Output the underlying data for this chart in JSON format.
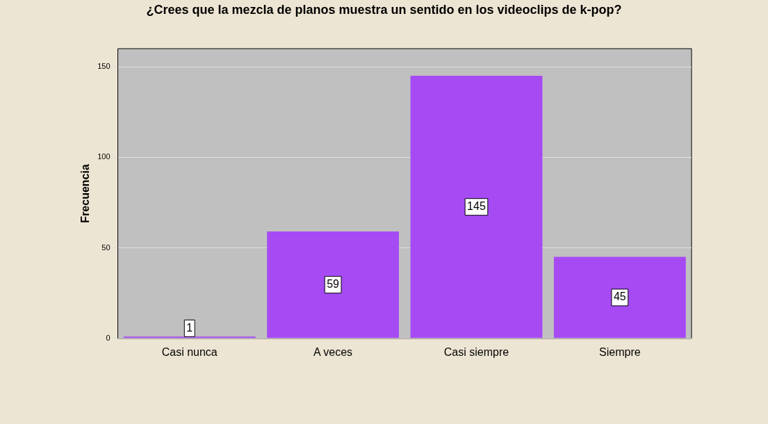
{
  "chart_data": {
    "type": "bar",
    "title": "¿Crees que la mezcla de planos muestra un sentido en los videoclips de k-pop?",
    "ylabel": "Frecuencia",
    "categories": [
      "Casi nunca",
      "A veces",
      "Casi siempre",
      "Siempre"
    ],
    "values": [
      1,
      59,
      145,
      45
    ],
    "color": "#a64bf4",
    "ylim": [
      0,
      160
    ],
    "yticks": [
      0,
      50,
      100,
      150
    ],
    "grid": "y",
    "data_labels": true,
    "legend": false
  }
}
